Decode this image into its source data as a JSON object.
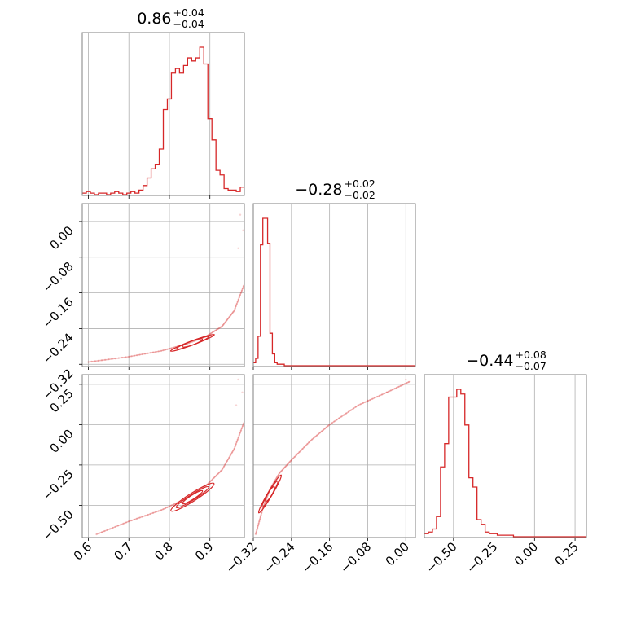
{
  "chart_data": {
    "type": "corner",
    "colors": {
      "series": "#d62728",
      "grid": "#b0b0b0",
      "frame": "#808080"
    },
    "grid": true,
    "parameters": [
      {
        "title": {
          "median": "0.86",
          "plus": "+0.04",
          "minus": "−0.04"
        },
        "range": [
          0.585,
          0.985
        ],
        "ticks": [
          0.6,
          0.7,
          0.8,
          0.9
        ],
        "tick_labels": [
          "0.6",
          "0.7",
          "0.8",
          "0.9"
        ],
        "histogram": {
          "bins": [
            0.585,
            0.595,
            0.605,
            0.615,
            0.625,
            0.635,
            0.645,
            0.655,
            0.665,
            0.675,
            0.685,
            0.695,
            0.705,
            0.715,
            0.725,
            0.735,
            0.745,
            0.755,
            0.765,
            0.775,
            0.785,
            0.795,
            0.805,
            0.815,
            0.825,
            0.835,
            0.845,
            0.855,
            0.865,
            0.875,
            0.885,
            0.895,
            0.905,
            0.915,
            0.925,
            0.935,
            0.945,
            0.955,
            0.965,
            0.975,
            0.985
          ],
          "counts": [
            1,
            2,
            1,
            0,
            1,
            1,
            0,
            1,
            2,
            1,
            0,
            1,
            2,
            1,
            3,
            6,
            11,
            17,
            20,
            30,
            56,
            63,
            80,
            83,
            80,
            85,
            90,
            88,
            90,
            97,
            86,
            50,
            36,
            16,
            13,
            4,
            3,
            3,
            2,
            5
          ]
        }
      },
      {
        "title": {
          "median": "−0.28",
          "plus": "+0.02",
          "minus": "−0.02"
        },
        "range": [
          -0.32,
          0.02
        ],
        "ticks": [
          -0.32,
          -0.24,
          -0.16,
          -0.08,
          0.0
        ],
        "tick_labels": [
          "−0.32",
          "−0.24",
          "−0.16",
          "−0.08",
          "0.00"
        ],
        "histogram": {
          "bins": [
            -0.32,
            -0.315,
            -0.31,
            -0.305,
            -0.3,
            -0.295,
            -0.29,
            -0.285,
            -0.28,
            -0.275,
            -0.27,
            -0.265,
            -0.26,
            -0.255,
            -0.25,
            -0.24,
            -0.2,
            -0.16,
            -0.12,
            -0.08,
            -0.04,
            0.0,
            0.02
          ],
          "counts": [
            2,
            5,
            20,
            82,
            100,
            100,
            83,
            22,
            8,
            2,
            1,
            1,
            1,
            0,
            0,
            0,
            0,
            0,
            0,
            0,
            0,
            0
          ]
        }
      },
      {
        "title": {
          "median": "−0.44",
          "plus": "+0.08",
          "minus": "−0.07"
        },
        "range": [
          -0.68,
          0.32
        ],
        "ticks": [
          -0.5,
          -0.25,
          0.0,
          0.25
        ],
        "tick_labels": [
          "−0.50",
          "−0.25",
          "0.00",
          "0.25"
        ],
        "histogram": {
          "bins": [
            -0.68,
            -0.655,
            -0.63,
            -0.605,
            -0.58,
            -0.555,
            -0.53,
            -0.505,
            -0.48,
            -0.455,
            -0.43,
            -0.405,
            -0.38,
            -0.355,
            -0.33,
            -0.305,
            -0.28,
            -0.255,
            -0.23,
            -0.205,
            -0.18,
            -0.155,
            -0.13,
            -0.105,
            -0.08,
            0.32
          ],
          "counts": [
            2,
            3,
            5,
            13,
            45,
            60,
            90,
            90,
            95,
            92,
            72,
            38,
            32,
            11,
            8,
            3,
            2,
            2,
            1,
            1,
            1,
            1,
            0,
            0,
            0
          ]
        }
      }
    ],
    "scatter_pairs": [
      {
        "x_param": 0,
        "y_param": 1,
        "y_range": [
          -0.325,
          0.04
        ],
        "y_ticks": [
          0.0,
          -0.08,
          -0.16,
          -0.24,
          -0.32
        ],
        "y_tick_labels": [
          "0.00",
          "−0.08",
          "−0.16",
          "−0.24",
          "−0.32"
        ],
        "trend": [
          [
            0.6,
            -0.315
          ],
          [
            0.7,
            -0.303
          ],
          [
            0.78,
            -0.29
          ],
          [
            0.84,
            -0.275
          ],
          [
            0.89,
            -0.258
          ],
          [
            0.93,
            -0.235
          ],
          [
            0.96,
            -0.2
          ],
          [
            0.985,
            -0.14
          ]
        ],
        "contour_center": [
          0.857,
          -0.272
        ],
        "contour_halfwidths": [
          [
            0.055,
            0.006
          ],
          [
            0.04,
            0.0045
          ],
          [
            0.025,
            0.003
          ]
        ],
        "outliers": [
          [
            0.975,
            0.015
          ],
          [
            0.982,
            -0.02
          ],
          [
            0.97,
            -0.06
          ]
        ]
      },
      {
        "x_param": 0,
        "y_param": 2,
        "y_range": [
          -0.7,
          0.31
        ],
        "y_ticks": [
          0.25,
          0.0,
          -0.25,
          -0.5
        ],
        "y_tick_labels": [
          "0.25",
          "0.00",
          "−0.25",
          "−0.50"
        ],
        "trend": [
          [
            0.62,
            -0.68
          ],
          [
            0.7,
            -0.6
          ],
          [
            0.78,
            -0.53
          ],
          [
            0.84,
            -0.46
          ],
          [
            0.89,
            -0.38
          ],
          [
            0.93,
            -0.28
          ],
          [
            0.96,
            -0.15
          ],
          [
            0.985,
            0.02
          ]
        ],
        "contour_center": [
          0.857,
          -0.45
        ],
        "contour_halfwidths": [
          [
            0.06,
            0.07
          ],
          [
            0.045,
            0.05
          ],
          [
            0.028,
            0.032
          ]
        ],
        "outliers": [
          [
            0.97,
            0.28
          ],
          [
            0.98,
            0.2
          ],
          [
            0.965,
            0.12
          ]
        ]
      },
      {
        "x_param": 1,
        "y_param": 2,
        "y_range": [
          -0.7,
          0.31
        ],
        "y_ticks": [
          0.25,
          0.0,
          -0.25,
          -0.5
        ],
        "y_tick_labels": [
          "0.25",
          "0.00",
          "−0.25",
          "−0.50"
        ],
        "trend": [
          [
            -0.315,
            -0.68
          ],
          [
            -0.3,
            -0.52
          ],
          [
            -0.285,
            -0.4
          ],
          [
            -0.265,
            -0.3
          ],
          [
            -0.24,
            -0.22
          ],
          [
            -0.2,
            -0.1
          ],
          [
            -0.16,
            0.0
          ],
          [
            -0.1,
            0.12
          ],
          [
            -0.04,
            0.2
          ],
          [
            0.01,
            0.27
          ]
        ],
        "contour_center": [
          -0.285,
          -0.43
        ],
        "contour_halfwidths": [
          [
            0.014,
            0.13
          ],
          [
            0.01,
            0.09
          ],
          [
            0.006,
            0.05
          ]
        ],
        "outliers": [
          [
            0.0,
            0.28
          ],
          [
            -0.04,
            0.2
          ],
          [
            -0.08,
            0.15
          ]
        ]
      }
    ]
  }
}
